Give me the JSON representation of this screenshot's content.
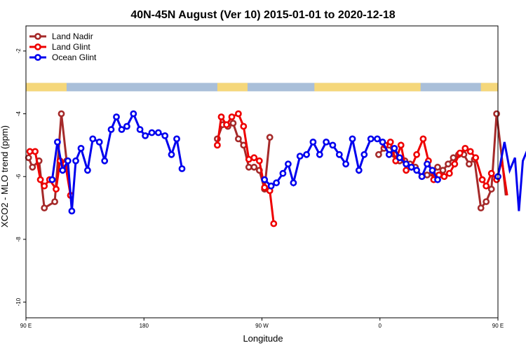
{
  "chart_data": {
    "type": "line",
    "title": "40N-45N August (Ver 10)   2015-01-01 to 2020-12-18",
    "xlabel": "Longitude",
    "ylabel": "XCO2 - MLO trend (ppm)",
    "xlim": [
      90,
      450
    ],
    "ylim": [
      -10.5,
      -1.2
    ],
    "y_ticks": [
      -10,
      -8,
      -6,
      -4,
      -2
    ],
    "x_ticks": [
      {
        "value": 90,
        "label": "90 E"
      },
      {
        "value": 180,
        "label": "180"
      },
      {
        "value": 270,
        "label": "90 W"
      },
      {
        "value": 360,
        "label": "0"
      },
      {
        "value": 450,
        "label": "90 E"
      },
      {
        "value": 540,
        "label": "180"
      }
    ],
    "legend_position": "top-left",
    "grid": false,
    "land_mask_y": -3.15,
    "land_mask_colors": {
      "land": "#f5d77a",
      "ocean": "#a9bfd9"
    },
    "land_segments": [
      [
        80,
        121
      ],
      [
        236,
        259
      ],
      [
        310,
        391
      ],
      [
        437,
        490
      ]
    ],
    "series": [
      {
        "name": "Land Nadir",
        "color": "#a52a2a",
        "points": [
          [
            92,
            -5.4
          ],
          [
            95,
            -5.7
          ],
          [
            100,
            -5.5
          ],
          [
            104,
            -7.0
          ],
          [
            112,
            -6.8
          ],
          [
            117,
            -4.0
          ],
          [
            121,
            -5.5
          ],
          [
            124,
            -6.6
          ],
          [
            236,
            -4.8
          ],
          [
            240,
            -4.35
          ],
          [
            244,
            -4.4
          ],
          [
            248,
            -4.3
          ],
          [
            252,
            -4.8
          ],
          [
            256,
            -5.0
          ],
          [
            260,
            -5.7
          ],
          [
            264,
            -5.7
          ],
          [
            268,
            -5.8
          ],
          [
            272,
            -6.4
          ],
          [
            276,
            -4.75
          ],
          [
            359,
            -5.3
          ],
          [
            363,
            -5.1
          ],
          [
            367,
            -5.0
          ],
          [
            371,
            -5.3
          ],
          [
            375,
            -5.5
          ],
          [
            379,
            -5.5
          ],
          [
            383,
            -5.6
          ],
          [
            387,
            -5.7
          ],
          [
            392,
            -6.0
          ],
          [
            396,
            -5.95
          ],
          [
            400,
            -5.9
          ],
          [
            404,
            -5.7
          ],
          [
            408,
            -5.8
          ],
          [
            412,
            -5.6
          ],
          [
            416,
            -5.4
          ],
          [
            420,
            -5.3
          ],
          [
            424,
            -5.3
          ],
          [
            428,
            -5.6
          ],
          [
            432,
            -5.45
          ],
          [
            437,
            -7.0
          ],
          [
            441,
            -6.8
          ],
          [
            445,
            -6.4
          ],
          [
            449,
            -4.0
          ],
          [
            453,
            -5.4
          ],
          [
            456,
            -6.6
          ]
        ]
      },
      {
        "name": "Land Glint",
        "color": "#ee0000",
        "points": [
          [
            93,
            -5.2
          ],
          [
            97,
            -5.2
          ],
          [
            101,
            -6.1
          ],
          [
            104,
            -6.3
          ],
          [
            108,
            -6.1
          ],
          [
            113,
            -6.4
          ],
          [
            116,
            -5.5
          ],
          [
            120,
            -5.6
          ],
          [
            124,
            -6.6
          ],
          [
            236,
            -5.0
          ],
          [
            239,
            -4.1
          ],
          [
            243,
            -4.35
          ],
          [
            247,
            -4.1
          ],
          [
            252,
            -4.0
          ],
          [
            256,
            -4.4
          ],
          [
            260,
            -5.45
          ],
          [
            264,
            -5.4
          ],
          [
            268,
            -5.5
          ],
          [
            272,
            -6.35
          ],
          [
            276,
            -6.45
          ],
          [
            279,
            -7.5
          ],
          [
            364,
            -5.0
          ],
          [
            368,
            -4.9
          ],
          [
            372,
            -5.5
          ],
          [
            376,
            -5.0
          ],
          [
            380,
            -5.8
          ],
          [
            384,
            -5.7
          ],
          [
            388,
            -5.3
          ],
          [
            393,
            -4.8
          ],
          [
            397,
            -5.5
          ],
          [
            401,
            -6.1
          ],
          [
            405,
            -5.95
          ],
          [
            409,
            -6.0
          ],
          [
            413,
            -5.9
          ],
          [
            417,
            -5.6
          ],
          [
            421,
            -5.25
          ],
          [
            425,
            -5.1
          ],
          [
            429,
            -5.2
          ],
          [
            433,
            -5.4
          ],
          [
            438,
            -6.1
          ],
          [
            441,
            -6.3
          ],
          [
            445,
            -5.9
          ],
          [
            449,
            -6.1
          ],
          [
            453,
            -5.5
          ],
          [
            457,
            -6.6
          ]
        ]
      },
      {
        "name": "Ocean Glint",
        "color": "#0000ee",
        "points": [
          [
            110,
            -6.1
          ],
          [
            114,
            -4.9
          ],
          [
            118,
            -5.8
          ],
          [
            122,
            -5.5
          ],
          [
            125,
            -7.1
          ],
          [
            128,
            -5.5
          ],
          [
            132,
            -5.1
          ],
          [
            137,
            -5.8
          ],
          [
            141,
            -4.8
          ],
          [
            146,
            -4.9
          ],
          [
            150,
            -5.5
          ],
          [
            155,
            -4.5
          ],
          [
            159,
            -4.1
          ],
          [
            163,
            -4.5
          ],
          [
            167,
            -4.4
          ],
          [
            172,
            -4.0
          ],
          [
            177,
            -4.5
          ],
          [
            181,
            -4.7
          ],
          [
            186,
            -4.6
          ],
          [
            191,
            -4.6
          ],
          [
            196,
            -4.7
          ],
          [
            201,
            -5.3
          ],
          [
            205,
            -4.8
          ],
          [
            209,
            -5.75
          ],
          [
            272,
            -6.1
          ],
          [
            277,
            -6.3
          ],
          [
            281,
            -6.2
          ],
          [
            286,
            -5.9
          ],
          [
            290,
            -5.6
          ],
          [
            294,
            -6.2
          ],
          [
            299,
            -5.35
          ],
          [
            304,
            -5.3
          ],
          [
            309,
            -4.9
          ],
          [
            314,
            -5.3
          ],
          [
            319,
            -4.9
          ],
          [
            324,
            -5.0
          ],
          [
            329,
            -5.3
          ],
          [
            334,
            -5.6
          ],
          [
            339,
            -4.8
          ],
          [
            344,
            -5.8
          ],
          [
            348,
            -5.3
          ],
          [
            353,
            -4.8
          ],
          [
            358,
            -4.8
          ],
          [
            362,
            -4.9
          ],
          [
            367,
            -5.3
          ],
          [
            371,
            -5.1
          ],
          [
            375,
            -5.4
          ],
          [
            380,
            -5.6
          ],
          [
            384,
            -5.7
          ],
          [
            388,
            -5.8
          ],
          [
            392,
            -6.0
          ],
          [
            396,
            -5.6
          ],
          [
            400,
            -5.8
          ],
          [
            404,
            -6.1
          ],
          [
            450,
            -6.0
          ],
          [
            455,
            -4.9
          ],
          [
            459,
            -5.8
          ],
          [
            463,
            -5.4
          ],
          [
            466,
            -7.1
          ],
          [
            469,
            -5.5
          ],
          [
            473,
            -5.1
          ],
          [
            477,
            -5.8
          ],
          [
            482,
            -4.8
          ],
          [
            486,
            -4.9
          ],
          [
            491,
            -5.5
          ],
          [
            495,
            -4.5
          ]
        ]
      }
    ]
  }
}
